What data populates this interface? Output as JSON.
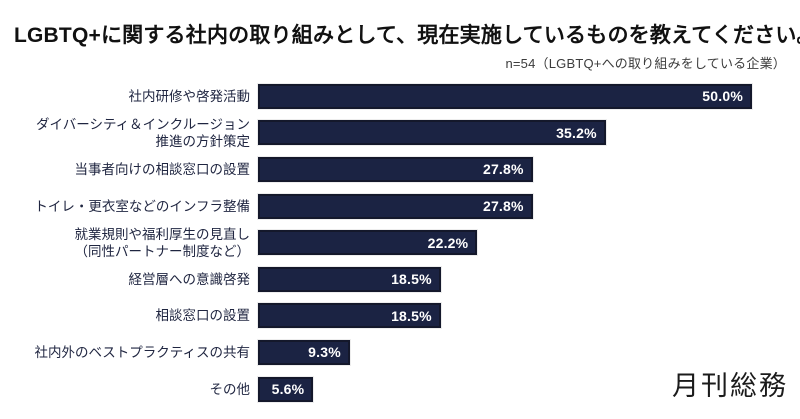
{
  "title": "LGBTQ+に関する社内の取り組みとして、現在実施しているものを教えてください。",
  "subtitle": "n=54（LGBTQ+への取り組みをしている企業）",
  "logo": "月刊総務",
  "colors": {
    "bar_fill": "#1b2343",
    "bar_border": "#14182b",
    "label_text": "#1f2540",
    "value_text": "#ffffff",
    "title_text": "#111111",
    "subtitle_text": "#3c3c3c"
  },
  "chart_data": {
    "type": "bar",
    "orientation": "horizontal",
    "title": "LGBTQ+に関する社内の取り組みとして、現在実施しているものを教えてください。",
    "subtitle": "n=54（LGBTQ+への取り組みをしている企業）",
    "xlabel": "",
    "ylabel": "",
    "xlim": [
      0,
      50
    ],
    "grid": false,
    "legend": "none",
    "categories": [
      "社内研修や啓発活動",
      "ダイバーシティ＆インクルージョン\n推進の方針策定",
      "当事者向けの相談窓口の設置",
      "トイレ・更衣室などのインフラ整備",
      "就業規則や福利厚生の見直し\n（同性パートナー制度など）",
      "経営層への意識啓発",
      "相談窓口の設置",
      "社内外のベストプラクティスの共有",
      "その他"
    ],
    "values": [
      50.0,
      35.2,
      27.8,
      27.8,
      22.2,
      18.5,
      18.5,
      9.3,
      5.6
    ],
    "value_labels": [
      "50.0%",
      "35.2%",
      "27.8%",
      "27.8%",
      "22.2%",
      "18.5%",
      "18.5%",
      "9.3%",
      "5.6%"
    ]
  }
}
